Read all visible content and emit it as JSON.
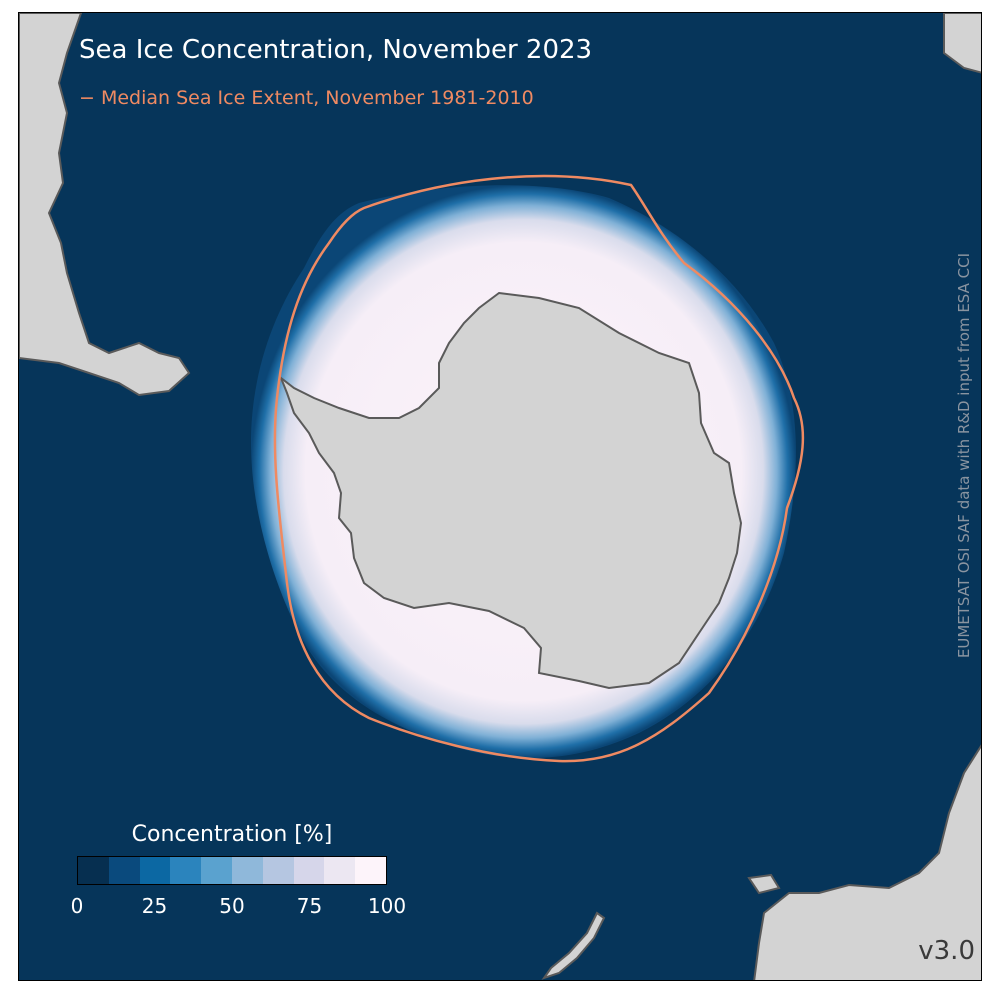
{
  "map": {
    "title": "Sea Ice Concentration, November 2023",
    "legend_line_label": "− Median Sea Ice Extent, November 1981-2010",
    "credit": "EUMETSAT OSI SAF data with R&D input from ESA CCI",
    "version": "v3.0",
    "colors": {
      "ocean": "#06355a",
      "land": "#d3d3d3",
      "coastline": "#5a5a5a",
      "median_extent_line": "#ef8a62",
      "ice_full": "#fdf4fa"
    }
  },
  "colorbar": {
    "title": "Concentration [%]",
    "ticks": [
      "0",
      "25",
      "50",
      "75",
      "100"
    ],
    "tick_values": [
      0,
      25,
      50,
      75,
      100
    ],
    "range": [
      0,
      100
    ],
    "colors": [
      "#062f50",
      "#0a4a7d",
      "#0c68a3",
      "#2b84bd",
      "#5aa2cf",
      "#8fb8da",
      "#b5c6e1",
      "#d6d6ea",
      "#ece7f2",
      "#fdf4fa"
    ]
  }
}
